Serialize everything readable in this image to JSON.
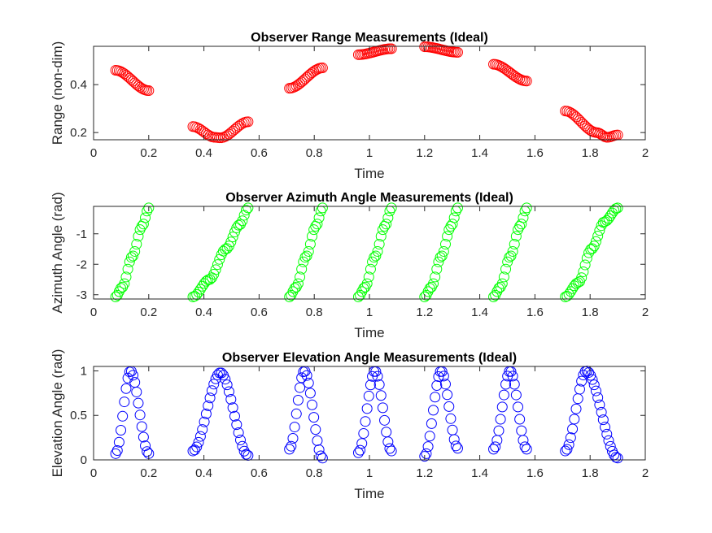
{
  "chart_data": [
    {
      "type": "scatter",
      "title": "Observer Range Measurements (Ideal)",
      "xlabel": "Time",
      "ylabel": "Range (non-dim)",
      "xlim": [
        0,
        2
      ],
      "ylim": [
        0.17,
        0.56
      ],
      "xticks": [
        "0",
        "0.2",
        "0.4",
        "0.6",
        "0.8",
        "1",
        "1.2",
        "1.4",
        "1.6",
        "1.8",
        "2"
      ],
      "yticks": [
        "0.2",
        "0.4"
      ],
      "ytick_values": [
        0.2,
        0.4
      ],
      "grid": false,
      "marker_color": "#ff0000",
      "marker": "open-circle",
      "segments": [
        {
          "x0": 0.08,
          "x1": 0.2,
          "n": 20,
          "y": [
            [
              0.0,
              0.46
            ],
            [
              1.0,
              0.375
            ]
          ]
        },
        {
          "x0": 0.36,
          "x1": 0.56,
          "n": 30,
          "y": [
            [
              0.0,
              0.225
            ],
            [
              0.4,
              0.18
            ],
            [
              0.5,
              0.178
            ],
            [
              1.0,
              0.245
            ]
          ]
        },
        {
          "x0": 0.71,
          "x1": 0.83,
          "n": 20,
          "y": [
            [
              0.0,
              0.385
            ],
            [
              1.0,
              0.47
            ]
          ]
        },
        {
          "x0": 0.96,
          "x1": 1.08,
          "n": 20,
          "y": [
            [
              0.0,
              0.525
            ],
            [
              1.0,
              0.55
            ]
          ]
        },
        {
          "x0": 1.2,
          "x1": 1.32,
          "n": 20,
          "y": [
            [
              0.0,
              0.558
            ],
            [
              1.0,
              0.535
            ]
          ]
        },
        {
          "x0": 1.45,
          "x1": 1.57,
          "n": 20,
          "y": [
            [
              0.0,
              0.485
            ],
            [
              1.0,
              0.415
            ]
          ]
        },
        {
          "x0": 1.71,
          "x1": 1.9,
          "n": 30,
          "y": [
            [
              0.0,
              0.29
            ],
            [
              0.6,
              0.2
            ],
            [
              0.8,
              0.18
            ],
            [
              1.0,
              0.19
            ]
          ]
        }
      ]
    },
    {
      "type": "scatter",
      "title": "Observer Azimuth Angle Measurements (Ideal)",
      "xlabel": "Time",
      "ylabel": "Azimuth Angle (rad)",
      "xlim": [
        0,
        2
      ],
      "ylim": [
        -3.14,
        -0.1
      ],
      "xticks": [
        "0",
        "0.2",
        "0.4",
        "0.6",
        "0.8",
        "1",
        "1.2",
        "1.4",
        "1.6",
        "1.8",
        "2"
      ],
      "yticks": [
        "-1",
        "-2",
        "-3"
      ],
      "ytick_values": [
        -1,
        -2,
        -3
      ],
      "grid": false,
      "marker_color": "#00ff00",
      "marker": "open-circle",
      "segments": [
        {
          "x0": 0.08,
          "x1": 0.2,
          "n": 20,
          "y": [
            [
              0.0,
              -3.07
            ],
            [
              0.2,
              -2.75
            ],
            [
              0.5,
              -1.75
            ],
            [
              0.8,
              -0.75
            ],
            [
              1.0,
              -0.15
            ]
          ]
        },
        {
          "x0": 0.36,
          "x1": 0.56,
          "n": 30,
          "y": [
            [
              0.0,
              -3.07
            ],
            [
              0.3,
              -2.5
            ],
            [
              0.6,
              -1.5
            ],
            [
              0.85,
              -0.7
            ],
            [
              1.0,
              -0.15
            ]
          ]
        },
        {
          "x0": 0.71,
          "x1": 0.83,
          "n": 20,
          "y": [
            [
              0.0,
              -3.07
            ],
            [
              0.2,
              -2.75
            ],
            [
              0.5,
              -1.75
            ],
            [
              0.8,
              -0.75
            ],
            [
              1.0,
              -0.15
            ]
          ]
        },
        {
          "x0": 0.96,
          "x1": 1.08,
          "n": 20,
          "y": [
            [
              0.0,
              -3.07
            ],
            [
              0.2,
              -2.75
            ],
            [
              0.5,
              -1.75
            ],
            [
              0.8,
              -0.75
            ],
            [
              1.0,
              -0.15
            ]
          ]
        },
        {
          "x0": 1.2,
          "x1": 1.32,
          "n": 20,
          "y": [
            [
              0.0,
              -3.07
            ],
            [
              0.2,
              -2.75
            ],
            [
              0.5,
              -1.75
            ],
            [
              0.8,
              -0.75
            ],
            [
              1.0,
              -0.15
            ]
          ]
        },
        {
          "x0": 1.45,
          "x1": 1.57,
          "n": 20,
          "y": [
            [
              0.0,
              -3.07
            ],
            [
              0.2,
              -2.75
            ],
            [
              0.5,
              -1.75
            ],
            [
              0.8,
              -0.75
            ],
            [
              1.0,
              -0.15
            ]
          ]
        },
        {
          "x0": 1.71,
          "x1": 1.9,
          "n": 30,
          "y": [
            [
              0.0,
              -3.07
            ],
            [
              0.25,
              -2.6
            ],
            [
              0.5,
              -1.5
            ],
            [
              0.75,
              -0.6
            ],
            [
              1.0,
              -0.15
            ]
          ]
        }
      ]
    },
    {
      "type": "scatter",
      "title": "Observer Elevation Angle Measurements (Ideal)",
      "xlabel": "Time",
      "ylabel": "Elevation Angle (rad)",
      "xlim": [
        0,
        2
      ],
      "ylim": [
        0,
        1.05
      ],
      "xticks": [
        "0",
        "0.2",
        "0.4",
        "0.6",
        "0.8",
        "1",
        "1.2",
        "1.4",
        "1.6",
        "1.8",
        "2"
      ],
      "yticks": [
        "0",
        "0.5",
        "1"
      ],
      "ytick_values": [
        0,
        0.5,
        1
      ],
      "grid": false,
      "marker_color": "#0000ff",
      "marker": "open-circle",
      "segments": [
        {
          "x0": 0.08,
          "x1": 0.2,
          "n": 20,
          "y": [
            [
              0.0,
              0.07
            ],
            [
              0.45,
              1.0
            ],
            [
              1.0,
              0.07
            ]
          ]
        },
        {
          "x0": 0.36,
          "x1": 0.56,
          "n": 30,
          "y": [
            [
              0.0,
              0.1
            ],
            [
              0.5,
              0.98
            ],
            [
              1.0,
              0.05
            ]
          ]
        },
        {
          "x0": 0.71,
          "x1": 0.83,
          "n": 20,
          "y": [
            [
              0.0,
              0.12
            ],
            [
              0.45,
              1.0
            ],
            [
              1.0,
              0.02
            ]
          ]
        },
        {
          "x0": 0.96,
          "x1": 1.08,
          "n": 20,
          "y": [
            [
              0.0,
              0.08
            ],
            [
              0.5,
              1.0
            ],
            [
              1.0,
              0.1
            ]
          ]
        },
        {
          "x0": 1.2,
          "x1": 1.32,
          "n": 20,
          "y": [
            [
              0.0,
              0.04
            ],
            [
              0.5,
              1.0
            ],
            [
              1.0,
              0.13
            ]
          ]
        },
        {
          "x0": 1.45,
          "x1": 1.57,
          "n": 20,
          "y": [
            [
              0.0,
              0.12
            ],
            [
              0.5,
              1.0
            ],
            [
              1.0,
              0.12
            ]
          ]
        },
        {
          "x0": 1.71,
          "x1": 1.9,
          "n": 30,
          "y": [
            [
              0.0,
              0.1
            ],
            [
              0.4,
              1.0
            ],
            [
              1.0,
              0.02
            ]
          ]
        }
      ]
    }
  ]
}
